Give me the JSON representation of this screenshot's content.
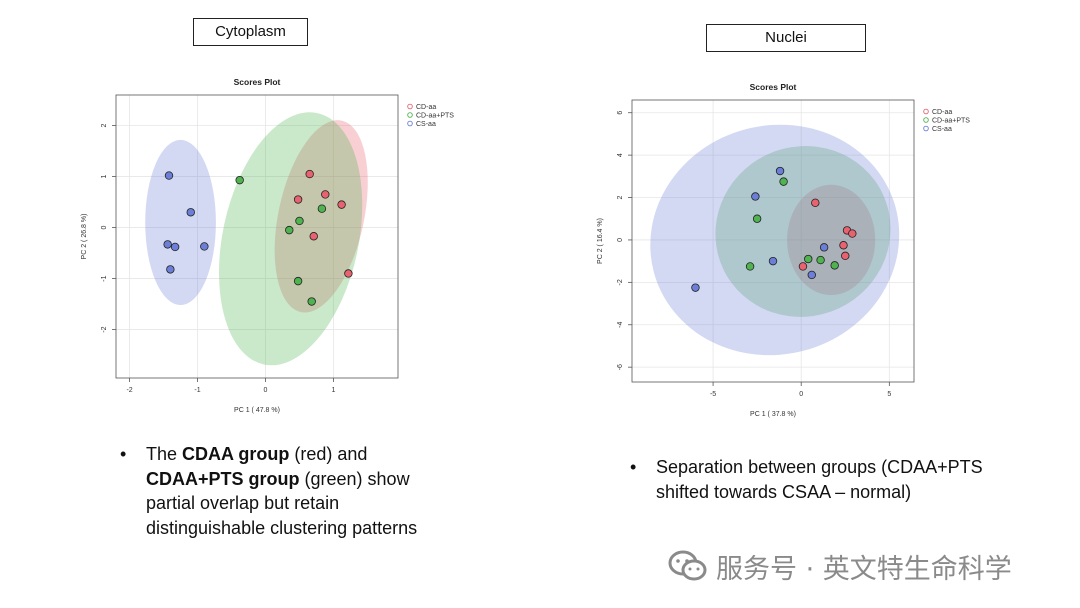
{
  "panels": {
    "left": {
      "label": "Cytoplasm"
    },
    "right": {
      "label": "Nuclei"
    }
  },
  "colors": {
    "CD-aa": "#e8626f",
    "CD-aa+PTS": "#4fb34f",
    "CS-aa": "#6c7fd8"
  },
  "chart_data": [
    {
      "type": "scatter",
      "title": "Scores Plot",
      "xlabel": "PC 1 ( 47.8 %)",
      "ylabel": "PC 2 ( 26.8 %)",
      "xlim": [
        -2.2,
        1.95
      ],
      "ylim": [
        -2.95,
        2.6
      ],
      "xticks": [
        -2,
        -1,
        0,
        1
      ],
      "yticks": [
        -2,
        -1,
        0,
        1,
        2
      ],
      "grid": true,
      "legend_position": "top-right",
      "series": [
        {
          "name": "CD-aa",
          "points": [
            [
              0.65,
              1.05
            ],
            [
              0.48,
              0.55
            ],
            [
              0.88,
              0.65
            ],
            [
              1.12,
              0.45
            ],
            [
              0.71,
              -0.17
            ],
            [
              1.22,
              -0.9
            ]
          ],
          "ellipse": {
            "cx": 0.82,
            "cy": 0.22,
            "rx": 0.63,
            "ry": 1.92,
            "angle_deg": 12
          }
        },
        {
          "name": "CD-aa+PTS",
          "points": [
            [
              -0.38,
              0.93
            ],
            [
              0.5,
              0.13
            ],
            [
              0.83,
              0.37
            ],
            [
              0.35,
              -0.05
            ],
            [
              0.48,
              -1.05
            ],
            [
              0.68,
              -1.45
            ]
          ],
          "ellipse": {
            "cx": 0.37,
            "cy": -0.22,
            "rx": 1.0,
            "ry": 2.52,
            "angle_deg": 12
          }
        },
        {
          "name": "CS-aa",
          "points": [
            [
              -1.42,
              1.02
            ],
            [
              -1.1,
              0.3
            ],
            [
              -1.44,
              -0.33
            ],
            [
              -1.33,
              -0.38
            ],
            [
              -0.9,
              -0.37
            ],
            [
              -1.4,
              -0.82
            ]
          ],
          "ellipse": {
            "cx": -1.25,
            "cy": 0.1,
            "rx": 0.52,
            "ry": 1.62,
            "angle_deg": 0
          }
        }
      ]
    },
    {
      "type": "scatter",
      "title": "Scores Plot",
      "xlabel": "PC 1 ( 37.8 %)",
      "ylabel": "PC 2 ( 16.4 %)",
      "xlim": [
        -9.6,
        6.4
      ],
      "ylim": [
        -6.7,
        6.6
      ],
      "xticks": [
        -5,
        0,
        5
      ],
      "yticks": [
        -6,
        -4,
        -2,
        0,
        2,
        4,
        6
      ],
      "grid": true,
      "legend_position": "top-right",
      "series": [
        {
          "name": "CD-aa",
          "points": [
            [
              0.8,
              1.75
            ],
            [
              2.6,
              0.45
            ],
            [
              2.9,
              0.3
            ],
            [
              2.4,
              -0.25
            ],
            [
              2.5,
              -0.75
            ],
            [
              0.1,
              -1.25
            ]
          ],
          "ellipse": {
            "cx": 1.7,
            "cy": 0.0,
            "rx": 2.5,
            "ry": 2.6,
            "angle_deg": 0
          }
        },
        {
          "name": "CD-aa+PTS",
          "points": [
            [
              -1.0,
              2.75
            ],
            [
              -2.5,
              1.0
            ],
            [
              0.4,
              -0.9
            ],
            [
              1.1,
              -0.95
            ],
            [
              1.9,
              -1.2
            ],
            [
              -2.9,
              -1.25
            ]
          ],
          "ellipse": {
            "cx": 0.1,
            "cy": 0.4,
            "rx": 5.0,
            "ry": 4.0,
            "angle_deg": -25
          }
        },
        {
          "name": "CS-aa",
          "points": [
            [
              -1.2,
              3.25
            ],
            [
              -2.6,
              2.05
            ],
            [
              1.3,
              -0.35
            ],
            [
              -1.6,
              -1.0
            ],
            [
              0.6,
              -1.65
            ],
            [
              -6.0,
              -2.25
            ]
          ],
          "ellipse": {
            "cx": -1.5,
            "cy": 0.0,
            "rx": 7.1,
            "ry": 5.4,
            "angle_deg": -15
          }
        }
      ]
    }
  ],
  "bullets": {
    "left": [
      {
        "text": "The ",
        "bold": false
      },
      {
        "text": "CDAA group",
        "bold": true
      },
      {
        "text": " (red) and ",
        "bold": false
      },
      {
        "text": "CDAA+PTS group",
        "bold": true
      },
      {
        "text": " (green) show partial overlap but retain distinguishable clustering patterns",
        "bold": false
      }
    ],
    "right": "Separation between groups (CDAA+PTS shifted towards CSAA – normal)",
    "marker": "•"
  },
  "watermark": {
    "text": "服务号 · 英文特生命科学",
    "icon": "wechat-icon"
  }
}
